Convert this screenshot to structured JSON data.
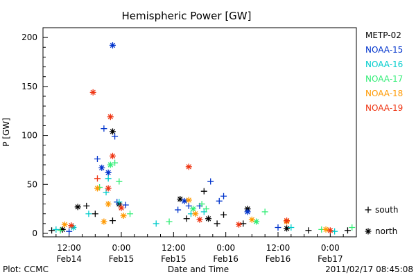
{
  "chart_data": {
    "type": "scatter",
    "title": "Hemispheric Power [GW]",
    "xlabel": "Date and Time",
    "ylabel": "P [GW]",
    "ylim": [
      0,
      210
    ],
    "xlim": [
      "2011-02-14T06:00",
      "2011-02-17T06:00"
    ],
    "yticks": [
      0,
      50,
      100,
      150,
      200
    ],
    "xticks": [
      {
        "at": "2011-02-14T12:00",
        "top": "12:00",
        "bottom": "Feb14"
      },
      {
        "at": "2011-02-15T00:00",
        "top": "0:00",
        "bottom": "Feb15"
      },
      {
        "at": "2011-02-15T12:00",
        "top": "12:00",
        "bottom": "Feb15"
      },
      {
        "at": "2011-02-16T00:00",
        "top": "0:00",
        "bottom": "Feb16"
      },
      {
        "at": "2011-02-16T12:00",
        "top": "12:00",
        "bottom": "Feb16"
      },
      {
        "at": "2011-02-17T00:00",
        "top": "0:00",
        "bottom": "Feb17"
      }
    ],
    "grid": false,
    "legend": {
      "placement": "right",
      "markers": [
        {
          "symbol": "+",
          "label": "south"
        },
        {
          "symbol": "*",
          "label": "north"
        }
      ]
    },
    "series": [
      {
        "name": "METP-02",
        "color": "#000000",
        "points": [
          {
            "x": "2011-02-14T08:00",
            "y": 3,
            "m": "+"
          },
          {
            "x": "2011-02-14T10:30",
            "y": 4,
            "m": "*"
          },
          {
            "x": "2011-02-14T14:00",
            "y": 27,
            "m": "*"
          },
          {
            "x": "2011-02-14T16:00",
            "y": 28,
            "m": "+"
          },
          {
            "x": "2011-02-14T18:00",
            "y": 20,
            "m": "+"
          },
          {
            "x": "2011-02-14T22:00",
            "y": 104,
            "m": "*"
          },
          {
            "x": "2011-02-14T22:00",
            "y": 13,
            "m": "+"
          },
          {
            "x": "2011-02-14T23:30",
            "y": 30,
            "m": "*"
          },
          {
            "x": "2011-02-15T13:30",
            "y": 35,
            "m": "*"
          },
          {
            "x": "2011-02-15T15:00",
            "y": 15,
            "m": "+"
          },
          {
            "x": "2011-02-15T19:00",
            "y": 43,
            "m": "+"
          },
          {
            "x": "2011-02-15T20:00",
            "y": 15,
            "m": "*"
          },
          {
            "x": "2011-02-15T22:00",
            "y": 10,
            "m": "+"
          },
          {
            "x": "2011-02-15T23:30",
            "y": 19,
            "m": "+"
          },
          {
            "x": "2011-02-16T04:00",
            "y": 10,
            "m": "+"
          },
          {
            "x": "2011-02-16T05:00",
            "y": 25,
            "m": "*"
          },
          {
            "x": "2011-02-16T14:00",
            "y": 5,
            "m": "*"
          },
          {
            "x": "2011-02-16T19:00",
            "y": 3,
            "m": "+"
          },
          {
            "x": "2011-02-17T04:00",
            "y": 3,
            "m": "+"
          }
        ]
      },
      {
        "name": "NOAA-15",
        "color": "#0033cc",
        "points": [
          {
            "x": "2011-02-14T12:00",
            "y": 2,
            "m": "+"
          },
          {
            "x": "2011-02-14T18:30",
            "y": 76,
            "m": "+"
          },
          {
            "x": "2011-02-14T19:30",
            "y": 67,
            "m": "*"
          },
          {
            "x": "2011-02-14T20:00",
            "y": 107,
            "m": "+"
          },
          {
            "x": "2011-02-14T21:00",
            "y": 62,
            "m": "*"
          },
          {
            "x": "2011-02-14T22:00",
            "y": 192,
            "m": "*"
          },
          {
            "x": "2011-02-14T22:30",
            "y": 99,
            "m": "+"
          },
          {
            "x": "2011-02-14T23:00",
            "y": 32,
            "m": "+"
          },
          {
            "x": "2011-02-15T01:00",
            "y": 29,
            "m": "+"
          },
          {
            "x": "2011-02-15T13:00",
            "y": 24,
            "m": "+"
          },
          {
            "x": "2011-02-15T14:30",
            "y": 33,
            "m": "*"
          },
          {
            "x": "2011-02-15T15:30",
            "y": 28,
            "m": "+"
          },
          {
            "x": "2011-02-15T18:00",
            "y": 28,
            "m": "+"
          },
          {
            "x": "2011-02-15T20:30",
            "y": 53,
            "m": "+"
          },
          {
            "x": "2011-02-15T22:30",
            "y": 33,
            "m": "+"
          },
          {
            "x": "2011-02-15T23:30",
            "y": 38,
            "m": "+"
          },
          {
            "x": "2011-02-16T05:00",
            "y": 22,
            "m": "*"
          },
          {
            "x": "2011-02-16T12:00",
            "y": 6,
            "m": "+"
          }
        ]
      },
      {
        "name": "NOAA-16",
        "color": "#00cccc",
        "points": [
          {
            "x": "2011-02-14T09:00",
            "y": 4,
            "m": "+"
          },
          {
            "x": "2011-02-14T13:00",
            "y": 6,
            "m": "*"
          },
          {
            "x": "2011-02-14T16:30",
            "y": 20,
            "m": "+"
          },
          {
            "x": "2011-02-14T20:30",
            "y": 42,
            "m": "+"
          },
          {
            "x": "2011-02-14T21:00",
            "y": 56,
            "m": "+"
          },
          {
            "x": "2011-02-14T23:30",
            "y": 32,
            "m": "+"
          },
          {
            "x": "2011-02-15T08:00",
            "y": 10,
            "m": "+"
          },
          {
            "x": "2011-02-15T16:00",
            "y": 20,
            "m": "+"
          },
          {
            "x": "2011-02-15T19:00",
            "y": 22,
            "m": "+"
          },
          {
            "x": "2011-02-16T07:00",
            "y": 12,
            "m": "+"
          },
          {
            "x": "2011-02-16T15:00",
            "y": 6,
            "m": "+"
          },
          {
            "x": "2011-02-17T01:00",
            "y": 2,
            "m": "+"
          }
        ]
      },
      {
        "name": "NOAA-17",
        "color": "#33ee77",
        "points": [
          {
            "x": "2011-02-14T10:00",
            "y": 3,
            "m": "+"
          },
          {
            "x": "2011-02-14T19:00",
            "y": 47,
            "m": "+"
          },
          {
            "x": "2011-02-14T21:30",
            "y": 70,
            "m": "*"
          },
          {
            "x": "2011-02-14T22:30",
            "y": 72,
            "m": "+"
          },
          {
            "x": "2011-02-14T23:30",
            "y": 53,
            "m": "+"
          },
          {
            "x": "2011-02-15T02:00",
            "y": 20,
            "m": "+"
          },
          {
            "x": "2011-02-15T11:00",
            "y": 12,
            "m": "+"
          },
          {
            "x": "2011-02-15T16:30",
            "y": 25,
            "m": "*"
          },
          {
            "x": "2011-02-15T18:30",
            "y": 30,
            "m": "+"
          },
          {
            "x": "2011-02-15T19:30",
            "y": 25,
            "m": "+"
          },
          {
            "x": "2011-02-16T07:00",
            "y": 12,
            "m": "*"
          },
          {
            "x": "2011-02-16T09:00",
            "y": 22,
            "m": "+"
          },
          {
            "x": "2011-02-16T22:00",
            "y": 4,
            "m": "+"
          },
          {
            "x": "2011-02-17T05:00",
            "y": 6,
            "m": "+"
          }
        ]
      },
      {
        "name": "NOAA-18",
        "color": "#ff9900",
        "points": [
          {
            "x": "2011-02-14T11:00",
            "y": 9,
            "m": "*"
          },
          {
            "x": "2011-02-14T18:30",
            "y": 46,
            "m": "*"
          },
          {
            "x": "2011-02-14T20:00",
            "y": 12,
            "m": "*"
          },
          {
            "x": "2011-02-14T21:00",
            "y": 30,
            "m": "*"
          },
          {
            "x": "2011-02-15T00:30",
            "y": 18,
            "m": "*"
          },
          {
            "x": "2011-02-15T15:30",
            "y": 34,
            "m": "*"
          },
          {
            "x": "2011-02-15T17:00",
            "y": 20,
            "m": "*"
          },
          {
            "x": "2011-02-16T06:00",
            "y": 14,
            "m": "*"
          },
          {
            "x": "2011-02-16T14:00",
            "y": 12,
            "m": "*"
          },
          {
            "x": "2011-02-16T23:00",
            "y": 4,
            "m": "*"
          }
        ]
      },
      {
        "name": "NOAA-19",
        "color": "#ee3311",
        "points": [
          {
            "x": "2011-02-14T12:30",
            "y": 8,
            "m": "*"
          },
          {
            "x": "2011-02-14T17:30",
            "y": 144,
            "m": "*"
          },
          {
            "x": "2011-02-14T18:30",
            "y": 56,
            "m": "+"
          },
          {
            "x": "2011-02-14T21:00",
            "y": 46,
            "m": "*"
          },
          {
            "x": "2011-02-14T21:30",
            "y": 119,
            "m": "*"
          },
          {
            "x": "2011-02-14T22:00",
            "y": 79,
            "m": "*"
          },
          {
            "x": "2011-02-15T00:00",
            "y": 26,
            "m": "*"
          },
          {
            "x": "2011-02-15T15:30",
            "y": 68,
            "m": "*"
          },
          {
            "x": "2011-02-15T18:00",
            "y": 14,
            "m": "*"
          },
          {
            "x": "2011-02-16T03:00",
            "y": 9,
            "m": "*"
          },
          {
            "x": "2011-02-16T14:00",
            "y": 13,
            "m": "*"
          },
          {
            "x": "2011-02-17T00:00",
            "y": 3,
            "m": "*"
          }
        ]
      }
    ]
  },
  "footer": {
    "plot_credit": "Plot: CCMC",
    "timestamp": "2011/02/17 08:45:08"
  }
}
